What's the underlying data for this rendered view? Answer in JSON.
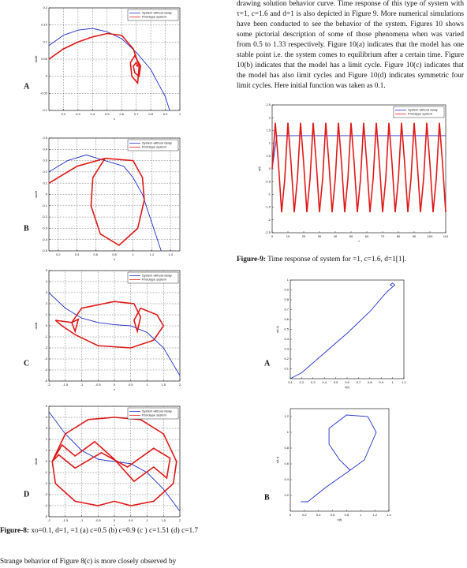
{
  "paragraph_top": "drawing solution behavior curve. Time response of this type of system with τ=1, c=1.6 and d=1 is also depicted in Figure 9. More numerical simulations have been conducted to see the behavior of the system. Figures 10 shows some pictorial description of some of those phenomena when   was varied from 0.5 to 1.33 respectively. Figure 10(a) indicates that the model has one stable point i.e. the system comes to equilibrium after a certain time. Figure 10(b) indicates that the model has a limit cycle. Figure 10(c) indicates that the model has also limit cycles and Figure 10(d) indicates symmetric four limit cycles. Here initial function was taken as 0.1.",
  "figure8_caption": {
    "label": "Figure-8:",
    "text": " xo=0.1, d=1,  =1 (a) c=0.5 (b) c=0.9 (c ) c=1.51 (d) c=1.7"
  },
  "figure9_caption": {
    "label": "Figure-9:",
    "text": " Time response of system for  =1, c=1.6, d=1[1]."
  },
  "paragraph_bottom": "Strange behavior of Figure 8(c) is more closely observed by",
  "chart_data": [
    {
      "type": "line",
      "panel": "A",
      "xlabel": "x",
      "ylabel": "dx/dt",
      "xlim": [
        0.1,
        1
      ],
      "ylim": [
        -0.1,
        0.2
      ],
      "xticks": [
        0.2,
        0.3,
        0.4,
        0.5,
        0.6,
        0.7,
        0.8,
        0.9,
        1
      ],
      "yticks": [
        -0.1,
        -0.05,
        0,
        0.05,
        0.1,
        0.15,
        0.2
      ],
      "grid": true,
      "series": [
        {
          "name": "System without delay",
          "color": "#1f2fd0",
          "x": [
            0.1,
            0.2,
            0.3,
            0.4,
            0.5,
            0.6,
            0.7,
            0.8,
            0.9,
            0.93
          ],
          "y": [
            0.09,
            0.12,
            0.135,
            0.14,
            0.13,
            0.11,
            0.07,
            0.02,
            -0.06,
            -0.1
          ]
        },
        {
          "name": "Prototype system",
          "color": "#e01818",
          "x": [
            0.1,
            0.2,
            0.3,
            0.4,
            0.5,
            0.6,
            0.68,
            0.72,
            0.71,
            0.67,
            0.66,
            0.69,
            0.73,
            0.72,
            0.69,
            0.68,
            0.7,
            0.71,
            0.7
          ],
          "y": [
            0.05,
            0.08,
            0.1,
            0.115,
            0.125,
            0.12,
            0.08,
            0.03,
            -0.02,
            0,
            0.04,
            0.06,
            0.03,
            0,
            0.01,
            0.03,
            0.04,
            0.03,
            0.03
          ]
        }
      ]
    },
    {
      "type": "line",
      "panel": "B",
      "xlabel": "x",
      "ylabel": "dx/dt",
      "xlim": [
        0.1,
        1.5
      ],
      "ylim": [
        -0.5,
        0.5
      ],
      "xticks": [
        0.2,
        0.4,
        0.6,
        0.8,
        1,
        1.2,
        1.4
      ],
      "yticks": [
        -0.5,
        -0.4,
        -0.3,
        -0.2,
        -0.1,
        0,
        0.1,
        0.2,
        0.3,
        0.4,
        0.5
      ],
      "grid": true,
      "series": [
        {
          "name": "System without delay",
          "color": "#1f2fd0",
          "x": [
            0.1,
            0.3,
            0.5,
            0.7,
            0.9,
            1,
            1.1,
            1.2,
            1.3
          ],
          "y": [
            0.2,
            0.3,
            0.35,
            0.3,
            0.25,
            0.15,
            0,
            -0.25,
            -0.5
          ]
        },
        {
          "name": "Prototype system",
          "color": "#e01818",
          "x": [
            0.1,
            0.4,
            0.7,
            1,
            1.1,
            1.12,
            1.05,
            0.85,
            0.65,
            0.55,
            0.57,
            0.7
          ],
          "y": [
            0.1,
            0.25,
            0.32,
            0.3,
            0.15,
            -0.05,
            -0.3,
            -0.45,
            -0.35,
            -0.1,
            0.15,
            0.32
          ]
        }
      ]
    },
    {
      "type": "line",
      "panel": "C",
      "xlabel": "x",
      "ylabel": "dx/dt",
      "xlim": [
        -2,
        2
      ],
      "ylim": [
        -5,
        5
      ],
      "xticks": [
        -2,
        -1.5,
        -1,
        -0.5,
        0,
        0.5,
        1,
        1.5,
        2
      ],
      "yticks": [
        -5,
        -4,
        -3,
        -2,
        -1,
        0,
        1,
        2,
        3,
        4,
        5
      ],
      "grid": true,
      "series": [
        {
          "name": "System without delay",
          "color": "#1f2fd0",
          "x": [
            -2,
            -1.5,
            -1,
            -0.5,
            0,
            0.5,
            1,
            1.5,
            2
          ],
          "y": [
            3,
            1.6,
            0.7,
            0.3,
            0.1,
            0,
            -0.6,
            -2,
            -4.5
          ]
        },
        {
          "name": "Prototype system",
          "color": "#e01818",
          "x": [
            -1.8,
            -1.3,
            -1.1,
            -1.2,
            -1.3,
            -1,
            0,
            0.6,
            0.8,
            0.7,
            0.6,
            0.8,
            1.3,
            1.5,
            1.2,
            0.5,
            -0.5,
            -1.2,
            -1.6,
            -1.8
          ],
          "y": [
            0.5,
            0.3,
            0.6,
            -0.5,
            0.3,
            1.6,
            2.2,
            2,
            0.8,
            -0.5,
            0.5,
            1.6,
            1,
            0,
            -1.3,
            -2,
            -1.8,
            -0.8,
            0,
            0.5
          ]
        }
      ]
    },
    {
      "type": "line",
      "panel": "D",
      "xlabel": "x",
      "ylabel": "dx/dt",
      "xlim": [
        -2,
        2
      ],
      "ylim": [
        -5,
        5
      ],
      "xticks": [
        -2,
        -1.5,
        -1,
        -0.5,
        0,
        0.5,
        1,
        1.5,
        2
      ],
      "yticks": [
        -5,
        -4,
        -3,
        -2,
        -1,
        0,
        1,
        2,
        3,
        4,
        5
      ],
      "grid": true,
      "series": [
        {
          "name": "System without delay",
          "color": "#1f2fd0",
          "x": [
            -2,
            -1.5,
            -1,
            -0.5,
            0,
            0.5,
            1,
            1.5,
            2
          ],
          "y": [
            4.5,
            2.5,
            1,
            0.2,
            0,
            -0.2,
            -1,
            -2.5,
            -4.5
          ]
        },
        {
          "name": "Prototype system",
          "color": "#e01818",
          "x": [
            -1.9,
            -1.5,
            -0.8,
            0,
            0.8,
            1.5,
            1.9,
            1.8,
            1.2,
            0.5,
            0,
            -0.5,
            -1.2,
            -1.8,
            -1.9,
            -1.6,
            -1.2,
            -0.6,
            0,
            0.6,
            1.2,
            1.6,
            1.7,
            1.2,
            0.4,
            -0.4,
            -1.2,
            -1.7,
            -1.9
          ],
          "y": [
            0,
            2.5,
            3.8,
            4,
            3.8,
            2.5,
            0,
            -2,
            -3.6,
            -4,
            -3.6,
            -4,
            -3.6,
            -2,
            0,
            1.5,
            0.5,
            1.8,
            0.2,
            -1.8,
            -0.5,
            -1.5,
            0.3,
            1.2,
            -0.5,
            0.8,
            -0.6,
            0.6,
            0
          ]
        }
      ]
    },
    {
      "type": "line",
      "xlabel": "t",
      "ylabel": "x(t)",
      "xlim": [
        0,
        110
      ],
      "ylim": [
        -2.5,
        2.5
      ],
      "xticks": [
        0,
        10,
        20,
        30,
        40,
        50,
        60,
        70,
        80,
        90,
        100,
        110
      ],
      "yticks": [
        -2.5,
        -2,
        -1.5,
        -1,
        -0.5,
        0,
        0.5,
        1,
        1.5,
        2,
        2.5
      ],
      "grid": false,
      "series": [
        {
          "name": "System without delay",
          "color": "#1f2fd0",
          "x": [
            0,
            3,
            110
          ],
          "y": [
            0,
            1.3,
            1.3
          ]
        },
        {
          "name": "Prototype system",
          "color": "#e01818",
          "x": [
            0,
            2,
            4,
            6,
            8,
            10,
            12,
            14,
            16,
            18,
            20,
            22,
            24,
            26,
            28,
            30,
            32,
            34,
            36,
            38,
            40,
            42,
            44,
            46,
            48,
            50,
            52,
            54,
            56,
            58,
            60,
            62,
            64,
            66,
            68,
            70,
            72,
            74,
            76,
            78,
            80,
            82,
            84,
            86,
            88,
            90,
            92,
            94,
            96,
            98,
            100,
            102,
            104,
            106,
            108,
            110
          ],
          "y": [
            0,
            1.8,
            0.2,
            -1.7,
            -0.4,
            1.8,
            0.2,
            -1.7,
            -0.4,
            1.8,
            0.2,
            -1.7,
            -0.4,
            1.8,
            0.2,
            -1.7,
            -0.4,
            1.8,
            0.2,
            -1.7,
            -0.4,
            1.8,
            0.2,
            -1.7,
            -0.4,
            1.8,
            0.2,
            -1.7,
            -0.4,
            1.8,
            0.2,
            -1.7,
            -0.4,
            1.8,
            0.2,
            -1.7,
            -0.4,
            1.8,
            0.2,
            -1.7,
            -0.4,
            1.8,
            0.2,
            -1.7,
            -0.4,
            1.8,
            0.2,
            -1.7,
            -0.4,
            1.8,
            0.2,
            -1.7,
            -0.4,
            1.8,
            0.2,
            -1.7
          ]
        }
      ]
    },
    {
      "type": "line",
      "panel": "A",
      "xlabel": "x(t)",
      "ylabel": "x(t-τ)",
      "xlim": [
        0.1,
        1.1
      ],
      "ylim": [
        0,
        1
      ],
      "xticks": [
        0.1,
        0.2,
        0.3,
        0.4,
        0.5,
        0.6,
        0.7,
        0.8,
        0.9,
        1,
        1.1
      ],
      "yticks": [
        0.1,
        0.2,
        0.3,
        0.4,
        0.5,
        0.6,
        0.7,
        0.8,
        0.9,
        1
      ],
      "grid": false,
      "series": [
        {
          "color": "#1f2fd0",
          "x": [
            0.1,
            0.2,
            0.4,
            0.6,
            0.8,
            0.95,
            1,
            1.02,
            1,
            0.98,
            1
          ],
          "y": [
            0,
            0.06,
            0.26,
            0.46,
            0.68,
            0.88,
            0.93,
            0.95,
            0.97,
            0.95,
            0.94
          ]
        }
      ]
    },
    {
      "type": "line",
      "panel": "B",
      "xlabel": "x(t)",
      "ylabel": "x(t-τ)",
      "xlim": [
        0,
        1.4
      ],
      "ylim": [
        0,
        1.3
      ],
      "xticks": [
        0,
        0.2,
        0.4,
        0.6,
        0.8,
        1,
        1.2,
        1.4
      ],
      "yticks": [
        0.2,
        0.4,
        0.6,
        0.8,
        1,
        1.2
      ],
      "grid": false,
      "series": [
        {
          "color": "#1f2fd0",
          "x": [
            0.15,
            0.25,
            0.5,
            0.85,
            1.05,
            1.22,
            1.1,
            0.8,
            0.55,
            0.55,
            0.7,
            0.85
          ],
          "y": [
            0.12,
            0.12,
            0.3,
            0.52,
            0.65,
            1,
            1.2,
            1.22,
            1.05,
            0.85,
            0.65,
            0.52
          ]
        }
      ]
    }
  ]
}
